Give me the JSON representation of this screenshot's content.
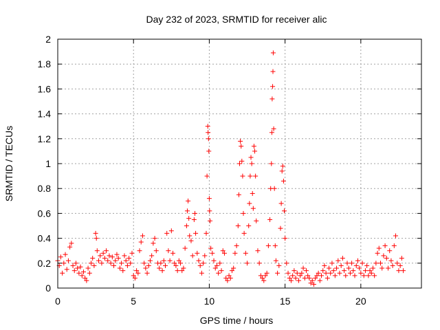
{
  "chart_data": {
    "type": "scatter",
    "title": "Day 232 of 2023, SRMTID for receiver alic",
    "xlabel": "GPS time / hours",
    "ylabel": "SRMTID / TECUs",
    "xlim": [
      0,
      24
    ],
    "ylim": [
      0,
      2
    ],
    "xticks": [
      0,
      5,
      10,
      15,
      20
    ],
    "xtick_labels": [
      "0",
      "5",
      "10",
      "15",
      "20"
    ],
    "yticks": [
      0,
      0.2,
      0.4,
      0.6,
      0.8,
      1,
      1.2,
      1.4,
      1.6,
      1.8,
      2
    ],
    "ytick_labels": [
      "0",
      "0.2",
      "0.4",
      "0.6",
      "0.8",
      "1",
      "1.2",
      "1.4",
      "1.6",
      "1.8",
      "2"
    ],
    "grid": true,
    "marker": "+",
    "marker_color": "#ff0000",
    "series": [
      {
        "name": "SRMTID",
        "points": [
          [
            0.0,
            0.22
          ],
          [
            0.1,
            0.18
          ],
          [
            0.2,
            0.25
          ],
          [
            0.3,
            0.12
          ],
          [
            0.4,
            0.2
          ],
          [
            0.5,
            0.27
          ],
          [
            0.6,
            0.15
          ],
          [
            0.7,
            0.22
          ],
          [
            0.8,
            0.33
          ],
          [
            0.9,
            0.36
          ],
          [
            1.0,
            0.18
          ],
          [
            1.1,
            0.14
          ],
          [
            1.2,
            0.2
          ],
          [
            1.3,
            0.16
          ],
          [
            1.4,
            0.12
          ],
          [
            1.5,
            0.17
          ],
          [
            1.6,
            0.1
          ],
          [
            1.7,
            0.13
          ],
          [
            1.8,
            0.08
          ],
          [
            1.9,
            0.06
          ],
          [
            2.0,
            0.16
          ],
          [
            2.1,
            0.12
          ],
          [
            2.2,
            0.2
          ],
          [
            2.3,
            0.24
          ],
          [
            2.4,
            0.18
          ],
          [
            2.5,
            0.44
          ],
          [
            2.55,
            0.4
          ],
          [
            2.6,
            0.3
          ],
          [
            2.7,
            0.22
          ],
          [
            2.8,
            0.26
          ],
          [
            2.9,
            0.2
          ],
          [
            3.0,
            0.28
          ],
          [
            3.1,
            0.24
          ],
          [
            3.2,
            0.3
          ],
          [
            3.3,
            0.22
          ],
          [
            3.4,
            0.26
          ],
          [
            3.5,
            0.2
          ],
          [
            3.6,
            0.25
          ],
          [
            3.7,
            0.18
          ],
          [
            3.8,
            0.22
          ],
          [
            3.9,
            0.27
          ],
          [
            4.0,
            0.24
          ],
          [
            4.1,
            0.16
          ],
          [
            4.2,
            0.2
          ],
          [
            4.3,
            0.14
          ],
          [
            4.4,
            0.26
          ],
          [
            4.5,
            0.22
          ],
          [
            4.6,
            0.18
          ],
          [
            4.7,
            0.24
          ],
          [
            4.8,
            0.2
          ],
          [
            4.9,
            0.28
          ],
          [
            5.0,
            0.1
          ],
          [
            5.1,
            0.08
          ],
          [
            5.2,
            0.14
          ],
          [
            5.3,
            0.12
          ],
          [
            5.4,
            0.3
          ],
          [
            5.5,
            0.37
          ],
          [
            5.6,
            0.42
          ],
          [
            5.7,
            0.2
          ],
          [
            5.8,
            0.16
          ],
          [
            5.9,
            0.12
          ],
          [
            6.0,
            0.18
          ],
          [
            6.1,
            0.22
          ],
          [
            6.2,
            0.26
          ],
          [
            6.3,
            0.36
          ],
          [
            6.4,
            0.4
          ],
          [
            6.5,
            0.3
          ],
          [
            6.6,
            0.2
          ],
          [
            6.7,
            0.16
          ],
          [
            6.8,
            0.2
          ],
          [
            6.9,
            0.14
          ],
          [
            7.0,
            0.22
          ],
          [
            7.1,
            0.18
          ],
          [
            7.2,
            0.44
          ],
          [
            7.3,
            0.3
          ],
          [
            7.4,
            0.22
          ],
          [
            7.5,
            0.46
          ],
          [
            7.6,
            0.28
          ],
          [
            7.7,
            0.2
          ],
          [
            7.8,
            0.18
          ],
          [
            7.9,
            0.14
          ],
          [
            8.0,
            0.22
          ],
          [
            8.1,
            0.2
          ],
          [
            8.2,
            0.14
          ],
          [
            8.3,
            0.16
          ],
          [
            8.4,
            0.32
          ],
          [
            8.5,
            0.5
          ],
          [
            8.55,
            0.62
          ],
          [
            8.6,
            0.7
          ],
          [
            8.65,
            0.56
          ],
          [
            8.7,
            0.42
          ],
          [
            8.8,
            0.38
          ],
          [
            8.9,
            0.26
          ],
          [
            9.0,
            0.55
          ],
          [
            9.05,
            0.6
          ],
          [
            9.1,
            0.44
          ],
          [
            9.2,
            0.28
          ],
          [
            9.3,
            0.22
          ],
          [
            9.4,
            0.18
          ],
          [
            9.5,
            0.12
          ],
          [
            9.6,
            0.2
          ],
          [
            9.7,
            0.26
          ],
          [
            9.8,
            0.44
          ],
          [
            9.85,
            0.9
          ],
          [
            9.9,
            1.3
          ],
          [
            9.92,
            1.25
          ],
          [
            9.95,
            1.2
          ],
          [
            9.97,
            1.1
          ],
          [
            10.0,
            0.72
          ],
          [
            10.02,
            0.62
          ],
          [
            10.05,
            0.54
          ],
          [
            10.1,
            0.32
          ],
          [
            10.2,
            0.28
          ],
          [
            10.3,
            0.22
          ],
          [
            10.4,
            0.16
          ],
          [
            10.5,
            0.18
          ],
          [
            10.6,
            0.12
          ],
          [
            10.7,
            0.2
          ],
          [
            10.8,
            0.14
          ],
          [
            10.9,
            0.3
          ],
          [
            11.0,
            0.28
          ],
          [
            11.1,
            0.08
          ],
          [
            11.2,
            0.06
          ],
          [
            11.3,
            0.1
          ],
          [
            11.4,
            0.08
          ],
          [
            11.5,
            0.14
          ],
          [
            11.6,
            0.16
          ],
          [
            11.7,
            0.28
          ],
          [
            11.8,
            0.34
          ],
          [
            11.9,
            0.5
          ],
          [
            11.95,
            0.75
          ],
          [
            12.0,
            1.0
          ],
          [
            12.05,
            1.18
          ],
          [
            12.1,
            1.14
          ],
          [
            12.15,
            1.02
          ],
          [
            12.2,
            0.9
          ],
          [
            12.25,
            0.6
          ],
          [
            12.3,
            0.44
          ],
          [
            12.4,
            0.28
          ],
          [
            12.5,
            0.2
          ],
          [
            12.6,
            0.5
          ],
          [
            12.65,
            0.68
          ],
          [
            12.7,
            0.9
          ],
          [
            12.75,
            1.05
          ],
          [
            12.8,
            1.0
          ],
          [
            12.85,
            0.76
          ],
          [
            12.9,
            0.64
          ],
          [
            12.95,
            1.14
          ],
          [
            13.0,
            1.1
          ],
          [
            13.05,
            0.9
          ],
          [
            13.1,
            0.54
          ],
          [
            13.2,
            0.3
          ],
          [
            13.3,
            0.2
          ],
          [
            13.4,
            0.1
          ],
          [
            13.5,
            0.08
          ],
          [
            13.6,
            0.06
          ],
          [
            13.7,
            0.1
          ],
          [
            13.8,
            0.12
          ],
          [
            13.9,
            0.34
          ],
          [
            14.0,
            0.55
          ],
          [
            14.05,
            0.8
          ],
          [
            14.1,
            1.0
          ],
          [
            14.13,
            1.25
          ],
          [
            14.15,
            1.52
          ],
          [
            14.18,
            1.62
          ],
          [
            14.2,
            1.74
          ],
          [
            14.22,
            1.89
          ],
          [
            14.25,
            1.28
          ],
          [
            14.3,
            0.8
          ],
          [
            14.35,
            0.34
          ],
          [
            14.4,
            0.22
          ],
          [
            14.5,
            0.12
          ],
          [
            14.6,
            0.18
          ],
          [
            14.7,
            0.48
          ],
          [
            14.75,
            0.68
          ],
          [
            14.8,
            0.94
          ],
          [
            14.85,
            0.98
          ],
          [
            14.9,
            0.86
          ],
          [
            14.95,
            0.62
          ],
          [
            15.0,
            0.4
          ],
          [
            15.1,
            0.2
          ],
          [
            15.2,
            0.12
          ],
          [
            15.3,
            0.08
          ],
          [
            15.4,
            0.06
          ],
          [
            15.5,
            0.1
          ],
          [
            15.6,
            0.14
          ],
          [
            15.7,
            0.08
          ],
          [
            15.8,
            0.12
          ],
          [
            15.9,
            0.06
          ],
          [
            16.0,
            0.1
          ],
          [
            16.1,
            0.12
          ],
          [
            16.2,
            0.16
          ],
          [
            16.3,
            0.08
          ],
          [
            16.4,
            0.14
          ],
          [
            16.5,
            0.1
          ],
          [
            16.6,
            0.08
          ],
          [
            16.7,
            0.04
          ],
          [
            16.8,
            0.06
          ],
          [
            16.9,
            0.03
          ],
          [
            17.0,
            0.08
          ],
          [
            17.1,
            0.1
          ],
          [
            17.2,
            0.12
          ],
          [
            17.3,
            0.06
          ],
          [
            17.4,
            0.1
          ],
          [
            17.5,
            0.14
          ],
          [
            17.6,
            0.18
          ],
          [
            17.7,
            0.12
          ],
          [
            17.8,
            0.08
          ],
          [
            17.9,
            0.16
          ],
          [
            18.0,
            0.12
          ],
          [
            18.1,
            0.2
          ],
          [
            18.2,
            0.14
          ],
          [
            18.3,
            0.1
          ],
          [
            18.4,
            0.16
          ],
          [
            18.5,
            0.22
          ],
          [
            18.6,
            0.12
          ],
          [
            18.7,
            0.18
          ],
          [
            18.8,
            0.24
          ],
          [
            18.9,
            0.14
          ],
          [
            19.0,
            0.1
          ],
          [
            19.1,
            0.2
          ],
          [
            19.2,
            0.16
          ],
          [
            19.3,
            0.12
          ],
          [
            19.4,
            0.2
          ],
          [
            19.5,
            0.14
          ],
          [
            19.6,
            0.1
          ],
          [
            19.7,
            0.18
          ],
          [
            19.8,
            0.22
          ],
          [
            19.9,
            0.16
          ],
          [
            20.0,
            0.12
          ],
          [
            20.1,
            0.2
          ],
          [
            20.2,
            0.1
          ],
          [
            20.3,
            0.14
          ],
          [
            20.4,
            0.18
          ],
          [
            20.5,
            0.1
          ],
          [
            20.6,
            0.14
          ],
          [
            20.7,
            0.12
          ],
          [
            20.8,
            0.16
          ],
          [
            20.9,
            0.1
          ],
          [
            21.0,
            0.2
          ],
          [
            21.1,
            0.28
          ],
          [
            21.2,
            0.32
          ],
          [
            21.3,
            0.2
          ],
          [
            21.4,
            0.16
          ],
          [
            21.5,
            0.26
          ],
          [
            21.6,
            0.34
          ],
          [
            21.7,
            0.24
          ],
          [
            21.8,
            0.16
          ],
          [
            21.9,
            0.3
          ],
          [
            22.0,
            0.22
          ],
          [
            22.1,
            0.18
          ],
          [
            22.2,
            0.34
          ],
          [
            22.3,
            0.42
          ],
          [
            22.4,
            0.2
          ],
          [
            22.5,
            0.14
          ],
          [
            22.6,
            0.18
          ],
          [
            22.7,
            0.24
          ],
          [
            22.8,
            0.14
          ]
        ]
      }
    ]
  }
}
